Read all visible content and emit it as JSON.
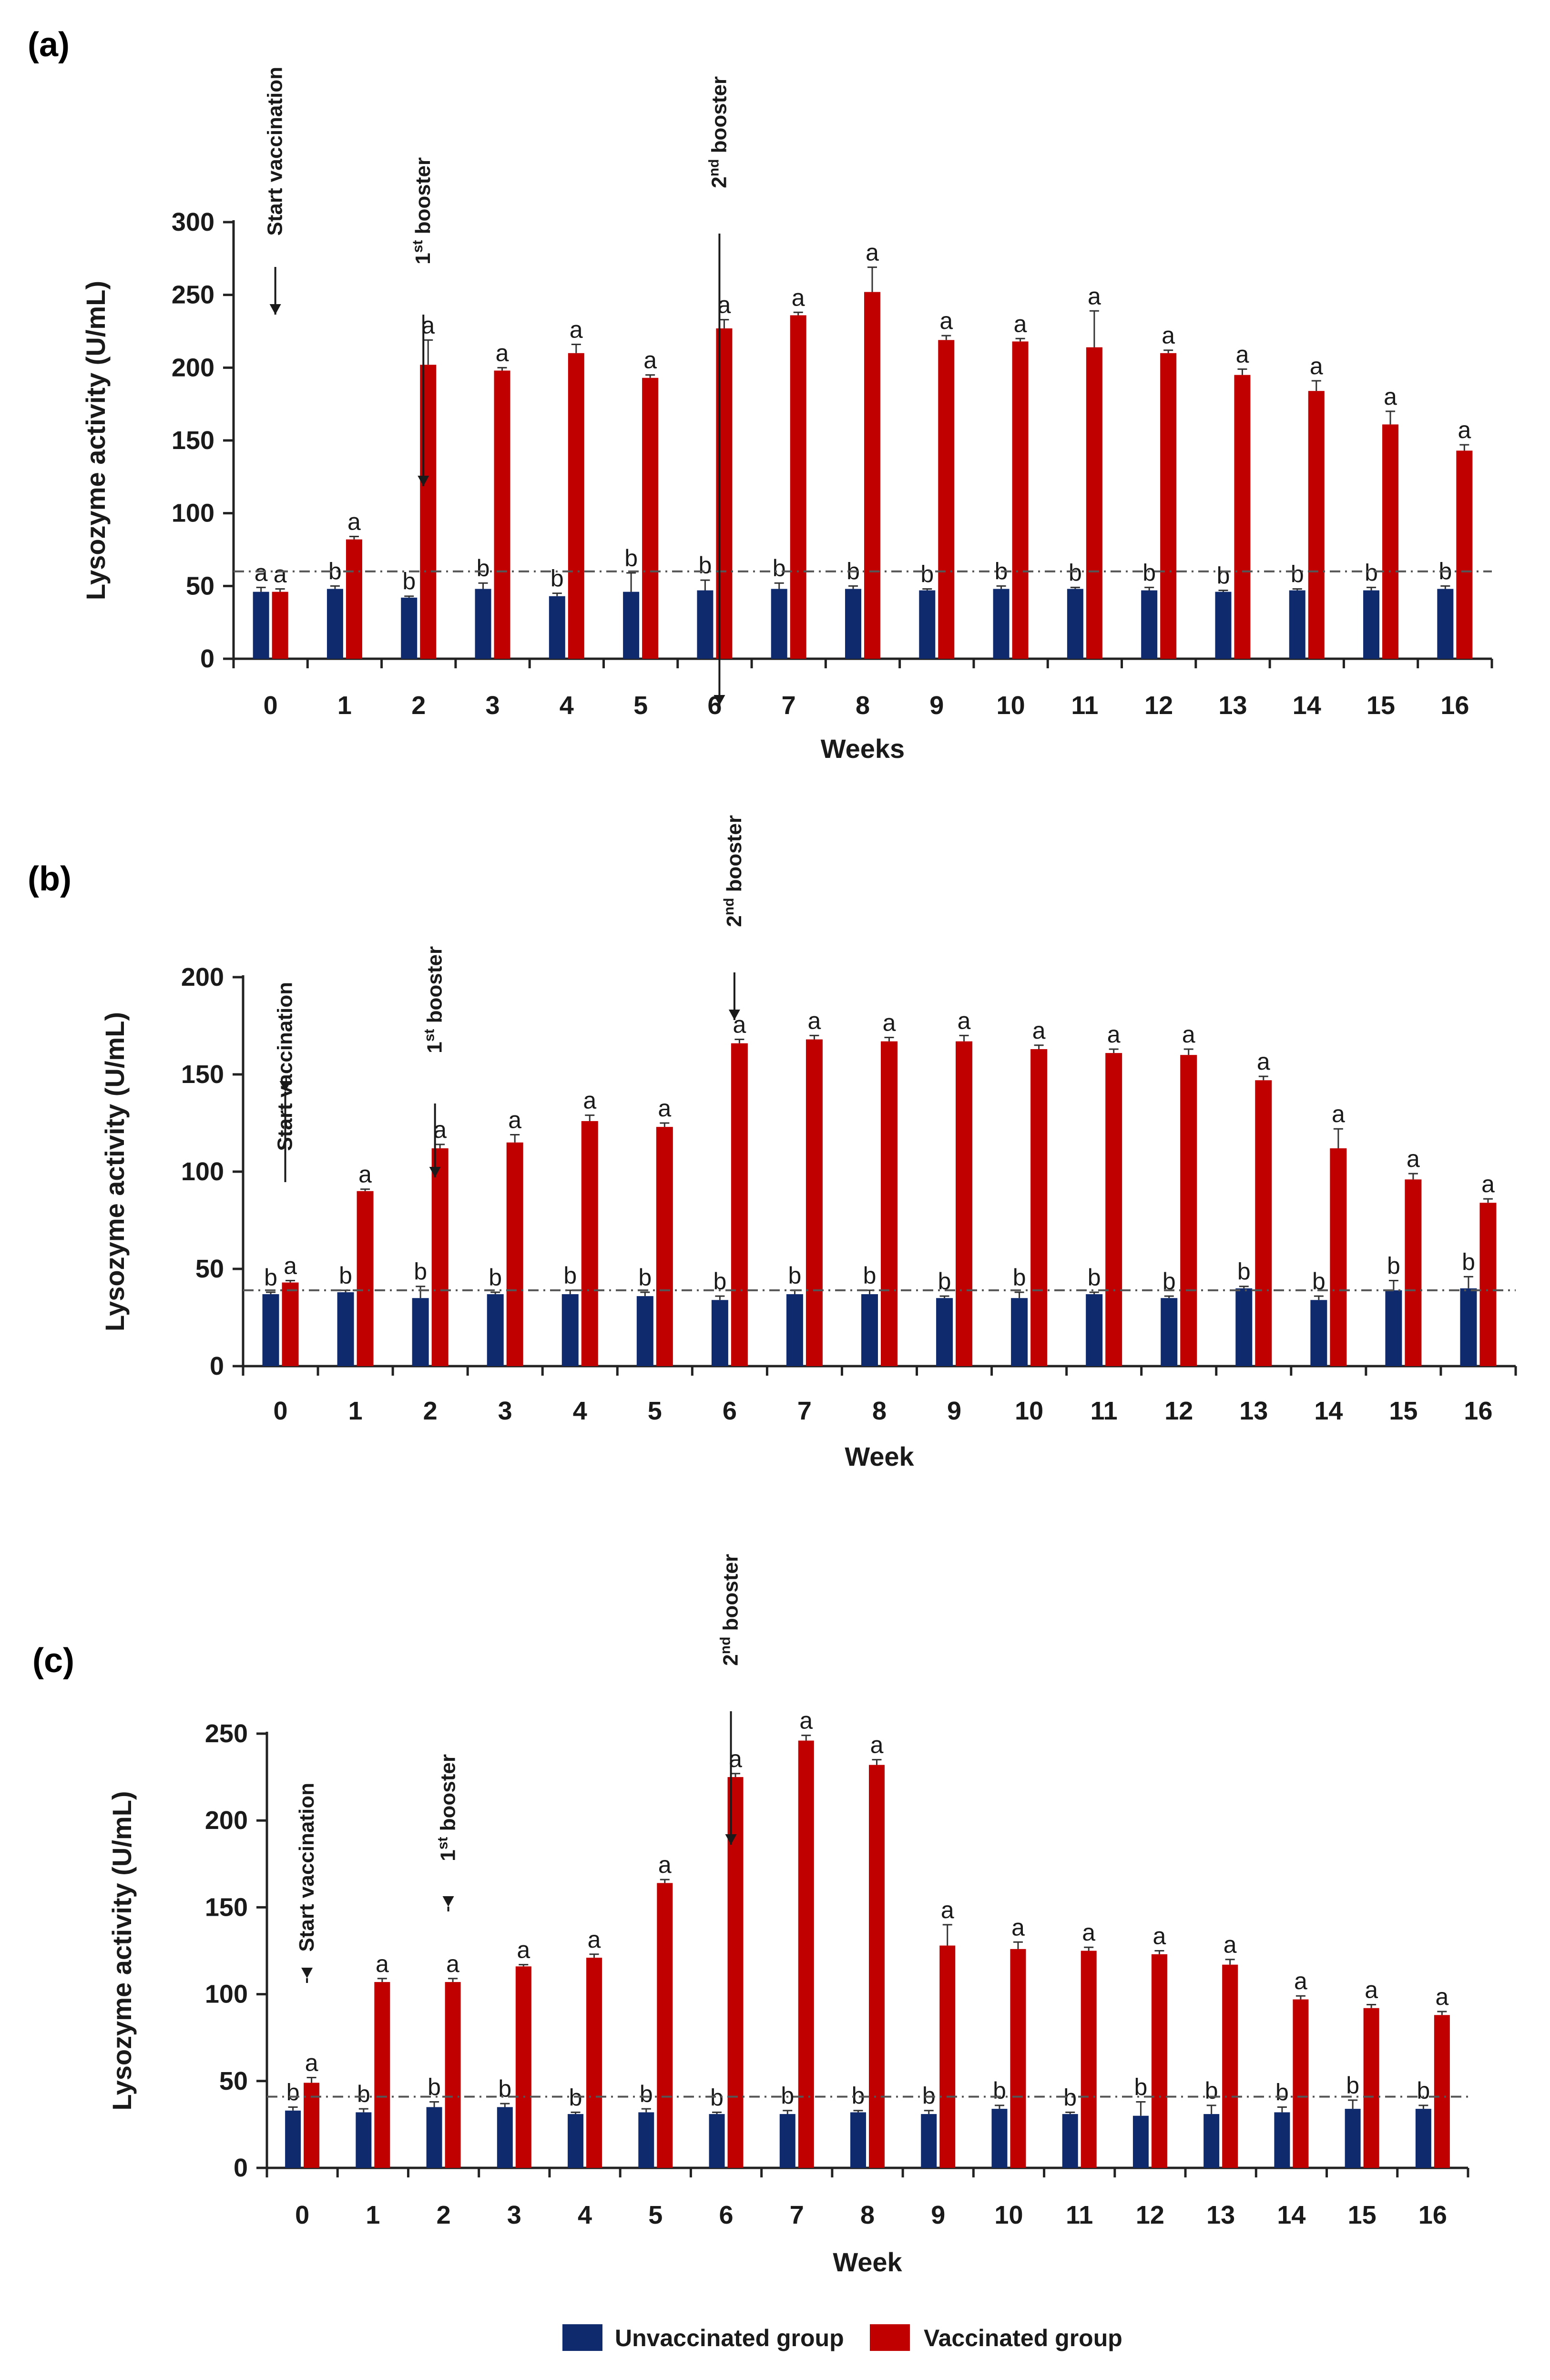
{
  "colors": {
    "unvaccinated": "#102a6e",
    "vaccinated": "#c00000",
    "axis": "#222222",
    "reference_line": "#555555"
  },
  "legend": {
    "unvaccinated_label": "Unvaccinated group",
    "vaccinated_label": "Vaccinated group"
  },
  "chart_data": [
    {
      "panel": "(a)",
      "type": "bar",
      "ylabel": "Lysozyme activity (U/mL)",
      "xlabel": "Weeks",
      "ylim": [
        0,
        300
      ],
      "yticks": [
        0,
        50,
        100,
        150,
        200,
        250,
        300
      ],
      "categories": [
        "0",
        "1",
        "2",
        "3",
        "4",
        "5",
        "6",
        "7",
        "8",
        "9",
        "10",
        "11",
        "12",
        "13",
        "14",
        "15",
        "16"
      ],
      "series": [
        {
          "name": "Unvaccinated group",
          "values": [
            46,
            48,
            42,
            48,
            43,
            46,
            47,
            48,
            48,
            47,
            48,
            48,
            47,
            46,
            47,
            47,
            48
          ],
          "errors": [
            3,
            2,
            1,
            4,
            2,
            13,
            7,
            4,
            2,
            1,
            2,
            1,
            2,
            1,
            1,
            2,
            2
          ],
          "letters": [
            "a",
            "b",
            "b",
            "b",
            "b",
            "b",
            "b",
            "b",
            "b",
            "b",
            "b",
            "b",
            "b",
            "b",
            "b",
            "b",
            "b"
          ]
        },
        {
          "name": "Vaccinated group",
          "values": [
            46,
            82,
            202,
            198,
            210,
            193,
            227,
            236,
            252,
            219,
            218,
            214,
            210,
            195,
            184,
            161,
            143
          ],
          "errors": [
            2,
            2,
            17,
            2,
            6,
            2,
            6,
            2,
            17,
            3,
            2,
            25,
            2,
            4,
            7,
            9,
            4
          ],
          "letters": [
            "a",
            "a",
            "a",
            "a",
            "a",
            "a",
            "a",
            "a",
            "a",
            "a",
            "a",
            "a",
            "a",
            "a",
            "a",
            "a",
            "a"
          ]
        }
      ],
      "reference_line": 60,
      "annotations": [
        {
          "category": "0",
          "text": "Start vaccination"
        },
        {
          "category": "2",
          "text": "1",
          "sup": "st",
          "rest": " booster"
        },
        {
          "category": "6",
          "text": "2",
          "sup": "nd",
          "rest": " booster"
        }
      ]
    },
    {
      "panel": "(b)",
      "type": "bar",
      "ylabel": "Lysozyme activity (U/mL)",
      "xlabel": "Week",
      "ylim": [
        0,
        200
      ],
      "yticks": [
        0,
        50,
        100,
        150,
        200
      ],
      "categories": [
        "0",
        "1",
        "2",
        "3",
        "4",
        "5",
        "6",
        "7",
        "8",
        "9",
        "10",
        "11",
        "12",
        "13",
        "14",
        "15",
        "16"
      ],
      "series": [
        {
          "name": "Unvaccinated group",
          "values": [
            37,
            38,
            35,
            37,
            37,
            36,
            34,
            37,
            37,
            35,
            35,
            37,
            35,
            40,
            34,
            39,
            40
          ],
          "errors": [
            1,
            1,
            6,
            1,
            2,
            2,
            2,
            2,
            2,
            1,
            3,
            1,
            1,
            1,
            2,
            5,
            6
          ],
          "letters": [
            "b",
            "b",
            "b",
            "b",
            "b",
            "b",
            "b",
            "b",
            "b",
            "b",
            "b",
            "b",
            "b",
            "b",
            "b",
            "b",
            "b"
          ]
        },
        {
          "name": "Vaccinated group",
          "values": [
            43,
            90,
            112,
            115,
            126,
            123,
            166,
            168,
            167,
            167,
            163,
            161,
            160,
            147,
            112,
            96,
            84
          ],
          "errors": [
            1,
            1,
            2,
            4,
            3,
            2,
            2,
            2,
            2,
            3,
            2,
            2,
            3,
            2,
            10,
            3,
            2
          ],
          "letters": [
            "a",
            "a",
            "a",
            "a",
            "a",
            "a",
            "a",
            "a",
            "a",
            "a",
            "a",
            "a",
            "a",
            "a",
            "a",
            "a",
            "a"
          ]
        }
      ],
      "reference_line": 39,
      "annotations": [
        {
          "category": "0",
          "text": "Start vaccination"
        },
        {
          "category": "2",
          "text": "1",
          "sup": "st",
          "rest": " booster"
        },
        {
          "category": "6",
          "text": "2",
          "sup": "nd",
          "rest": " booster"
        }
      ]
    },
    {
      "panel": "(c)",
      "type": "bar",
      "ylabel": "Lysozyme activity (U/mL)",
      "xlabel": "Week",
      "ylim": [
        0,
        250
      ],
      "yticks": [
        0,
        50,
        100,
        150,
        200,
        250
      ],
      "categories": [
        "0",
        "1",
        "2",
        "3",
        "4",
        "5",
        "6",
        "7",
        "8",
        "9",
        "10",
        "11",
        "12",
        "13",
        "14",
        "15",
        "16"
      ],
      "series": [
        {
          "name": "Unvaccinated group",
          "values": [
            33,
            32,
            35,
            35,
            31,
            32,
            31,
            31,
            32,
            31,
            34,
            31,
            30,
            31,
            32,
            34,
            34
          ],
          "errors": [
            2,
            2,
            3,
            2,
            1,
            2,
            1,
            2,
            1,
            2,
            2,
            1,
            8,
            5,
            3,
            5,
            2
          ],
          "letters": [
            "b",
            "b",
            "b",
            "b",
            "b",
            "b",
            "b",
            "b",
            "b",
            "b",
            "b",
            "b",
            "b",
            "b",
            "b",
            "b",
            "b"
          ]
        },
        {
          "name": "Vaccinated group",
          "values": [
            49,
            107,
            107,
            116,
            121,
            164,
            225,
            246,
            232,
            128,
            126,
            125,
            123,
            117,
            97,
            92,
            88
          ],
          "errors": [
            3,
            2,
            2,
            1,
            2,
            2,
            2,
            3,
            3,
            12,
            4,
            2,
            2,
            3,
            2,
            2,
            2
          ],
          "letters": [
            "a",
            "a",
            "a",
            "a",
            "a",
            "a",
            "a",
            "a",
            "a",
            "a",
            "a",
            "a",
            "a",
            "a",
            "a",
            "a",
            "a"
          ]
        }
      ],
      "reference_line": 41,
      "annotations": [
        {
          "category": "0",
          "text": "Start vaccination"
        },
        {
          "category": "2",
          "text": "1",
          "sup": "st",
          "rest": " booster"
        },
        {
          "category": "6",
          "text": "2",
          "sup": "nd",
          "rest": " booster"
        }
      ]
    }
  ]
}
